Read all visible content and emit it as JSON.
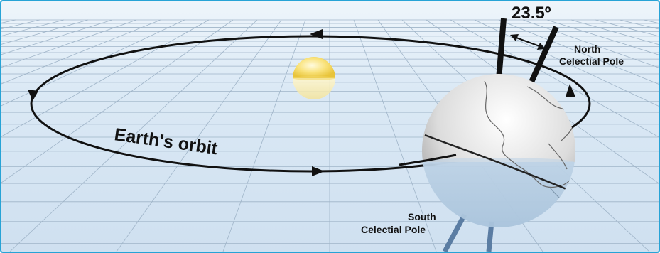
{
  "labels": {
    "tilt_angle": "23.5º",
    "north_pole_line1": "North",
    "north_pole_line2": "Celectial Pole",
    "south_pole_line1": "South",
    "south_pole_line2": "Celectial Pole",
    "orbit": "Earth's orbit"
  },
  "colors": {
    "border": "#27a3d6",
    "grid": "#9fb4c8",
    "orbit": "#111111",
    "sun": "#f7d548",
    "earth_land": "#e4e4e4",
    "earth_water": "#c4d8ea",
    "axis": "#111111",
    "south_axis": "#5b7da3"
  },
  "tilt_degrees": 23.5
}
